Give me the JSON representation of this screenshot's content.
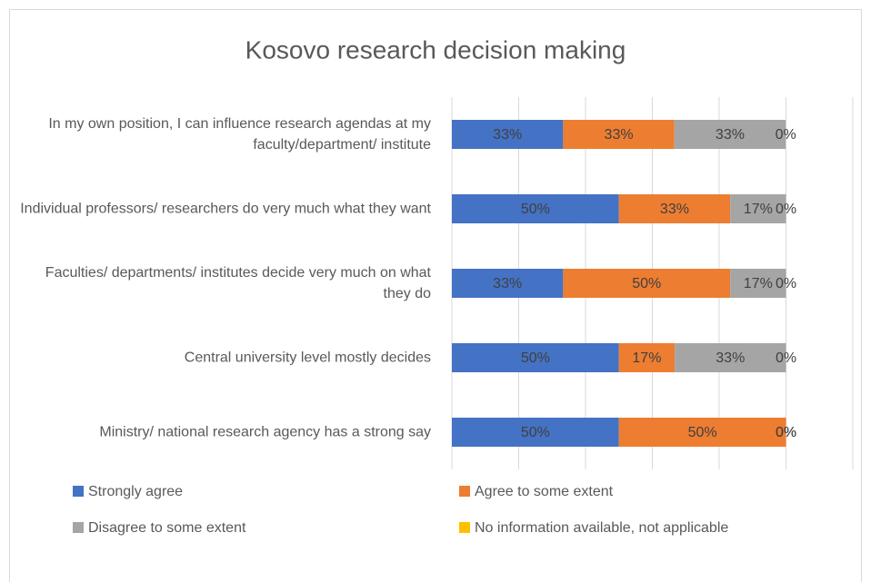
{
  "chart_data": {
    "type": "stacked_barh",
    "title": "Kosovo research decision making",
    "categories": [
      "In my own position, I can influence research agendas at my faculty/department/ institute",
      "Individual professors/ researchers do very much what they want",
      "Faculties/ departments/ institutes decide very much on what they do",
      "Central university level mostly decides",
      "Ministry/ national research agency has a strong say"
    ],
    "series": [
      {
        "name": "Strongly agree",
        "color": "#4472c4",
        "values": [
          33.3,
          50,
          33.3,
          50,
          50
        ],
        "value_labels": [
          "33%",
          "50%",
          "33%",
          "50%",
          "50%"
        ]
      },
      {
        "name": "Agree to some extent",
        "color": "#ed7d31",
        "values": [
          33.3,
          33.3,
          50,
          16.7,
          50
        ],
        "value_labels": [
          "33%",
          "33%",
          "50%",
          "17%",
          "50%"
        ]
      },
      {
        "name": "Disagree to some extent",
        "color": "#a5a5a5",
        "values": [
          33.3,
          16.7,
          16.7,
          33.3,
          0
        ],
        "value_labels": [
          "33%",
          "17%",
          "17%",
          "33%",
          "0%"
        ]
      },
      {
        "name": "No information available, not applicable",
        "color": "#ffc000",
        "values": [
          0,
          0,
          0,
          0,
          0
        ],
        "value_labels": [
          "0%",
          "0%",
          "0%",
          "0%",
          "0%"
        ]
      }
    ],
    "xlim": [
      0,
      120
    ],
    "xticks": [
      0,
      20,
      40,
      60,
      80,
      100,
      120
    ],
    "grid": true,
    "legend": "bottom"
  }
}
